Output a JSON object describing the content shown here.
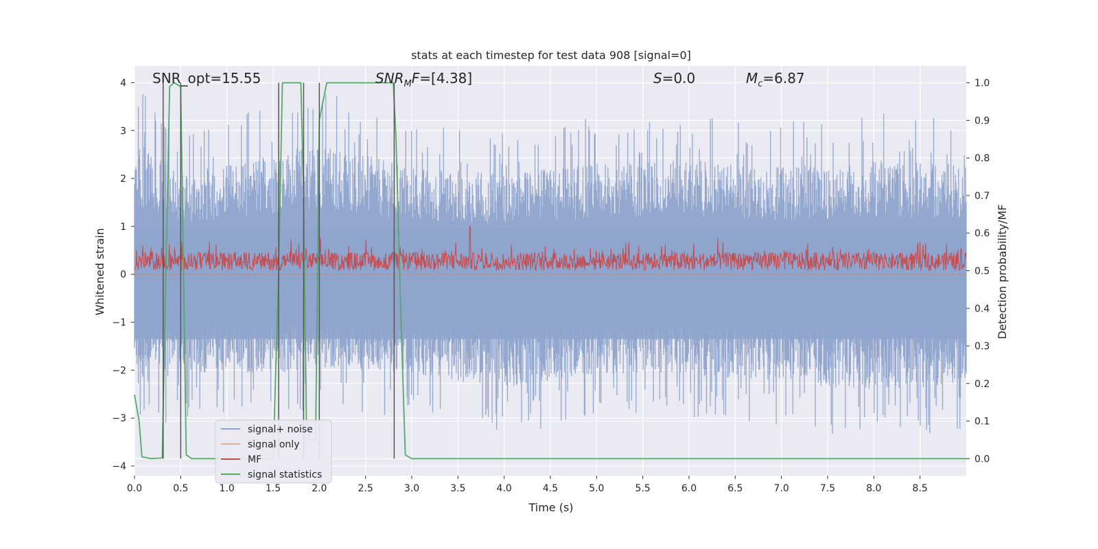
{
  "chart_data": {
    "type": "line",
    "title": "stats at each timestep for test data 908 [signal=0]",
    "xlabel": "Time (s)",
    "ylabel_left": "Whitened strain",
    "ylabel_right": "Detection probability/MF",
    "xlim": [
      0.0,
      9.0
    ],
    "ylim_left": [
      -4.2,
      4.35
    ],
    "ylim_right": [
      -0.045,
      1.045
    ],
    "x_ticks": [
      "0.0",
      "0.5",
      "1.0",
      "1.5",
      "2.0",
      "2.5",
      "3.0",
      "3.5",
      "4.0",
      "4.5",
      "5.0",
      "5.5",
      "6.0",
      "6.5",
      "7.0",
      "7.5",
      "8.0",
      "8.5"
    ],
    "y_ticks_left": [
      "4",
      "3",
      "2",
      "1",
      "0",
      "−1",
      "−2",
      "−3",
      "−4"
    ],
    "y_ticks_right": [
      "1.0",
      "0.9",
      "0.8",
      "0.7",
      "0.6",
      "0.5",
      "0.4",
      "0.3",
      "0.2",
      "0.1",
      "0.0"
    ],
    "annotations": [
      {
        "id": "snr-opt",
        "text": "SNR_opt=15.55"
      },
      {
        "id": "snr-mf",
        "text": "SNR_MF=[4.38]"
      },
      {
        "id": "s",
        "text": "S=0.0"
      },
      {
        "id": "mc",
        "text": "M_c=6.87"
      }
    ],
    "grid": true,
    "legend_position": "lower-left",
    "series": [
      {
        "name": "signal+ noise",
        "axis": "left",
        "color": "#8fa4cc",
        "description": "dense whitened strain noise spanning roughly -3.5 to 4.0",
        "envelope": {
          "x": [
            0.0,
            0.5,
            1.0,
            1.5,
            2.0,
            3.0,
            4.0,
            5.0,
            6.0,
            7.0,
            8.0,
            9.0
          ],
          "upper": [
            4.0,
            3.0,
            3.3,
            3.6,
            3.9,
            3.2,
            3.0,
            3.3,
            3.4,
            3.2,
            3.4,
            3.3
          ],
          "lower": [
            -3.3,
            -3.0,
            -2.9,
            -3.0,
            -2.8,
            -3.0,
            -3.4,
            -3.0,
            -3.0,
            -3.2,
            -3.5,
            -3.3
          ]
        }
      },
      {
        "name": "signal only",
        "axis": "left",
        "color": "#dd8452",
        "values_constant": 0.0
      },
      {
        "name": "MF",
        "axis": "left",
        "color": "#c44e52",
        "description": "matched filter output, noisy band roughly 0.0 to 0.9",
        "band": [
          0.0,
          0.85
        ],
        "peak": {
          "x": 3.63,
          "y": 1.0
        }
      },
      {
        "name": "signal statistics",
        "axis": "right",
        "color": "#55a868",
        "x": [
          0.0,
          0.05,
          0.08,
          0.18,
          0.3,
          0.34,
          0.38,
          0.43,
          0.5,
          0.56,
          0.62,
          0.7,
          1.5,
          1.56,
          1.6,
          1.8,
          1.83,
          1.86,
          1.9,
          1.96,
          2.0,
          2.08,
          2.8,
          2.83,
          2.88,
          2.93,
          3.0,
          9.0
        ],
        "y": [
          0.17,
          0.1,
          0.005,
          0.0,
          0.002,
          0.5,
          0.99,
          1.0,
          0.99,
          0.01,
          0.0,
          0.0,
          0.0,
          0.5,
          1.0,
          1.0,
          0.7,
          0.1,
          0.05,
          0.05,
          0.9,
          1.0,
          1.0,
          0.85,
          0.4,
          0.01,
          0.0,
          0.0
        ]
      }
    ],
    "vertical_markers": {
      "color": "#555555",
      "x": [
        0.31,
        0.5,
        1.56,
        1.83,
        2.0,
        2.81
      ],
      "y_range": [
        0.0,
        1.0
      ]
    }
  }
}
